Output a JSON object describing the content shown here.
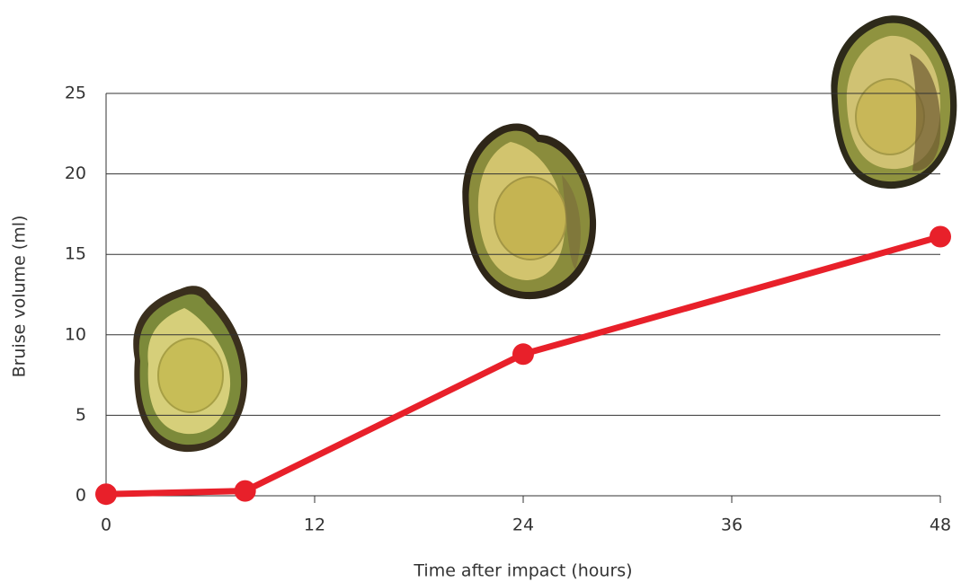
{
  "chart_data": {
    "type": "line",
    "xlabel": "Time after impact (hours)",
    "ylabel": "Bruise volume (ml)",
    "x": [
      0,
      8,
      24,
      48
    ],
    "values": [
      0.1,
      0.3,
      8.8,
      16.1
    ],
    "color": "#e8202a",
    "xlim": [
      0,
      48
    ],
    "xticks": [
      0,
      12,
      24,
      36,
      48
    ],
    "ylim": [
      0,
      25
    ],
    "yticks": [
      0,
      5,
      10,
      15,
      20,
      25
    ],
    "grid": true
  }
}
